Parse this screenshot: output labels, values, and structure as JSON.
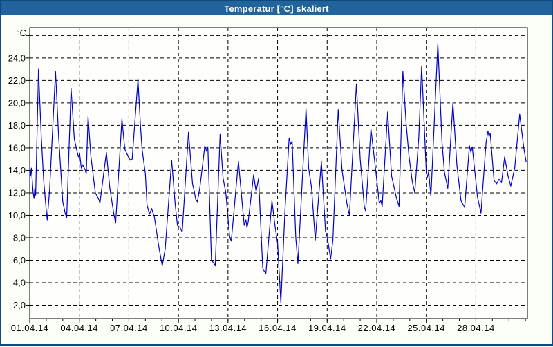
{
  "window": {
    "title": "Temperatur [°C] skaliert"
  },
  "colors": {
    "titlebar_bg": "#20649B",
    "titlebar_text": "#FFFFFF",
    "frame_border": "#0F4A7D",
    "page_bg": "#FCFEF8",
    "plot_bg": "#FEFFFC",
    "line": "#0000C8",
    "grid": "#000000",
    "axis_text": "#000000"
  },
  "chart_data": {
    "type": "line",
    "title": "Temperatur [°C] skaliert",
    "y_unit_label": "°C",
    "grid": true,
    "legend": "none",
    "x_axis": {
      "xlim_days": [
        0,
        30.12
      ],
      "minor_tick_every_days": 1,
      "max_minor_tick_day": 30,
      "major_ticks": [
        {
          "day": 0,
          "label": "01.04.14"
        },
        {
          "day": 3,
          "label": "04.04.14"
        },
        {
          "day": 6,
          "label": "07.04.14"
        },
        {
          "day": 9,
          "label": "10.04.14"
        },
        {
          "day": 12,
          "label": "13.04.14"
        },
        {
          "day": 15,
          "label": "16.04.14"
        },
        {
          "day": 18,
          "label": "19.04.14"
        },
        {
          "day": 21,
          "label": "22.04.14"
        },
        {
          "day": 24,
          "label": "25.04.14"
        },
        {
          "day": 27,
          "label": "28.04.14"
        }
      ]
    },
    "y_axis": {
      "ylim": [
        0.8,
        26.7
      ],
      "ticks": [
        {
          "value": 2,
          "label": "2,0"
        },
        {
          "value": 4,
          "label": "4,0"
        },
        {
          "value": 6,
          "label": "6,0"
        },
        {
          "value": 8,
          "label": "8,0"
        },
        {
          "value": 10,
          "label": "10,0"
        },
        {
          "value": 12,
          "label": "12,0"
        },
        {
          "value": 14,
          "label": "14,0"
        },
        {
          "value": 16,
          "label": "16,0"
        },
        {
          "value": 18,
          "label": "18,0"
        },
        {
          "value": 20,
          "label": "20,0"
        },
        {
          "value": 22,
          "label": "22,0"
        },
        {
          "value": 24,
          "label": "24,0"
        },
        {
          "value": 26,
          "label": ""
        }
      ]
    },
    "series": [
      {
        "name": "Temperatur",
        "color": "#0000C8",
        "points": [
          [
            0.0,
            14.3
          ],
          [
            0.05,
            13.5
          ],
          [
            0.1,
            14.2
          ],
          [
            0.2,
            12.1
          ],
          [
            0.26,
            11.5
          ],
          [
            0.31,
            12.4
          ],
          [
            0.36,
            11.8
          ],
          [
            0.53,
            23.0
          ],
          [
            0.7,
            17.0
          ],
          [
            0.85,
            13.0
          ],
          [
            1.02,
            10.1
          ],
          [
            1.06,
            9.6
          ],
          [
            1.2,
            12.2
          ],
          [
            1.56,
            22.8
          ],
          [
            1.75,
            17.0
          ],
          [
            2.0,
            11.2
          ],
          [
            2.16,
            10.1
          ],
          [
            2.24,
            9.8
          ],
          [
            2.5,
            21.3
          ],
          [
            2.7,
            16.8
          ],
          [
            2.86,
            15.7
          ],
          [
            2.95,
            15.2
          ],
          [
            3.02,
            15.5
          ],
          [
            3.12,
            14.2
          ],
          [
            3.2,
            14.5
          ],
          [
            3.34,
            14.1
          ],
          [
            3.42,
            13.7
          ],
          [
            3.53,
            18.8
          ],
          [
            3.7,
            15.3
          ],
          [
            3.97,
            12.0
          ],
          [
            4.08,
            11.7
          ],
          [
            4.18,
            11.4
          ],
          [
            4.25,
            11.1
          ],
          [
            4.64,
            15.6
          ],
          [
            4.85,
            12.4
          ],
          [
            5.09,
            10.1
          ],
          [
            5.2,
            9.3
          ],
          [
            5.58,
            18.6
          ],
          [
            5.75,
            15.9
          ],
          [
            5.97,
            15.2
          ],
          [
            6.1,
            14.9
          ],
          [
            6.2,
            15.0
          ],
          [
            6.55,
            22.1
          ],
          [
            6.7,
            18.0
          ],
          [
            6.8,
            15.9
          ],
          [
            7.0,
            13.7
          ],
          [
            7.1,
            10.9
          ],
          [
            7.25,
            10.1
          ],
          [
            7.38,
            10.6
          ],
          [
            7.55,
            9.8
          ],
          [
            7.8,
            7.3
          ],
          [
            8.02,
            5.5
          ],
          [
            8.2,
            7.0
          ],
          [
            8.59,
            14.9
          ],
          [
            8.8,
            11.0
          ],
          [
            8.94,
            9.1
          ],
          [
            9.1,
            8.9
          ],
          [
            9.23,
            8.5
          ],
          [
            9.61,
            17.4
          ],
          [
            9.85,
            12.8
          ],
          [
            9.95,
            12.2
          ],
          [
            10.05,
            11.4
          ],
          [
            10.15,
            11.2
          ],
          [
            10.3,
            12.5
          ],
          [
            10.6,
            16.2
          ],
          [
            10.7,
            15.7
          ],
          [
            10.78,
            16.1
          ],
          [
            11.0,
            6.0
          ],
          [
            11.16,
            5.7
          ],
          [
            11.23,
            5.5
          ],
          [
            11.52,
            17.2
          ],
          [
            11.7,
            13.3
          ],
          [
            11.87,
            12.0
          ],
          [
            12.1,
            8.1
          ],
          [
            12.2,
            7.7
          ],
          [
            12.63,
            14.8
          ],
          [
            12.98,
            9.1
          ],
          [
            13.08,
            9.6
          ],
          [
            13.15,
            8.9
          ],
          [
            13.22,
            9.4
          ],
          [
            13.55,
            13.6
          ],
          [
            13.7,
            12.1
          ],
          [
            13.85,
            13.3
          ],
          [
            14.1,
            5.3
          ],
          [
            14.2,
            5.0
          ],
          [
            14.29,
            4.8
          ],
          [
            14.66,
            11.3
          ],
          [
            14.85,
            9.0
          ],
          [
            15.0,
            7.5
          ],
          [
            15.2,
            2.2
          ],
          [
            15.45,
            10.5
          ],
          [
            15.7,
            16.9
          ],
          [
            15.8,
            16.3
          ],
          [
            15.88,
            16.6
          ],
          [
            16.1,
            8.0
          ],
          [
            16.23,
            5.7
          ],
          [
            16.72,
            19.5
          ],
          [
            16.88,
            14.2
          ],
          [
            17.05,
            12.5
          ],
          [
            17.28,
            7.8
          ],
          [
            17.65,
            14.8
          ],
          [
            17.9,
            8.6
          ],
          [
            18.02,
            7.9
          ],
          [
            18.21,
            6.1
          ],
          [
            18.35,
            7.8
          ],
          [
            18.67,
            19.4
          ],
          [
            18.9,
            14.0
          ],
          [
            19.2,
            11.0
          ],
          [
            19.35,
            10.0
          ],
          [
            19.77,
            21.7
          ],
          [
            20.0,
            15.0
          ],
          [
            20.25,
            10.7
          ],
          [
            20.33,
            10.4
          ],
          [
            20.65,
            17.7
          ],
          [
            20.9,
            14.5
          ],
          [
            21.05,
            12.5
          ],
          [
            21.15,
            11.1
          ],
          [
            21.25,
            11.3
          ],
          [
            21.33,
            10.8
          ],
          [
            21.66,
            19.2
          ],
          [
            21.9,
            13.5
          ],
          [
            22.2,
            11.5
          ],
          [
            22.35,
            10.8
          ],
          [
            22.58,
            22.8
          ],
          [
            22.78,
            18.2
          ],
          [
            22.95,
            15.3
          ],
          [
            23.15,
            13.0
          ],
          [
            23.3,
            12.0
          ],
          [
            23.55,
            17.0
          ],
          [
            23.72,
            23.3
          ],
          [
            23.92,
            16.5
          ],
          [
            24.0,
            13.8
          ],
          [
            24.08,
            13.4
          ],
          [
            24.14,
            13.9
          ],
          [
            24.28,
            11.7
          ],
          [
            24.7,
            25.3
          ],
          [
            24.95,
            16.5
          ],
          [
            25.1,
            13.8
          ],
          [
            25.3,
            12.4
          ],
          [
            25.61,
            20.0
          ],
          [
            25.85,
            14.5
          ],
          [
            26.1,
            11.3
          ],
          [
            26.32,
            10.7
          ],
          [
            26.61,
            16.2
          ],
          [
            26.7,
            15.6
          ],
          [
            26.78,
            16.1
          ],
          [
            27.1,
            11.6
          ],
          [
            27.31,
            10.2
          ],
          [
            27.62,
            16.5
          ],
          [
            27.73,
            17.5
          ],
          [
            27.8,
            17.0
          ],
          [
            27.87,
            17.3
          ],
          [
            28.1,
            13.1
          ],
          [
            28.25,
            12.8
          ],
          [
            28.4,
            13.2
          ],
          [
            28.55,
            12.9
          ],
          [
            28.74,
            15.2
          ],
          [
            28.95,
            13.5
          ],
          [
            29.11,
            12.6
          ],
          [
            29.35,
            14.2
          ],
          [
            29.65,
            19.0
          ],
          [
            29.9,
            16.0
          ],
          [
            30.05,
            14.7
          ]
        ]
      }
    ]
  }
}
